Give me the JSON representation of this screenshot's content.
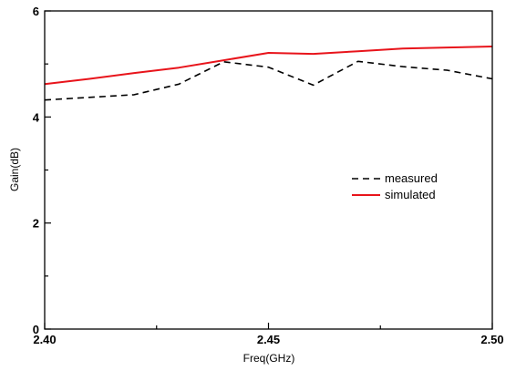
{
  "chart_data": {
    "type": "line",
    "xlabel": "Freq(GHz)",
    "ylabel": "Gain(dB)",
    "xlim": [
      2.4,
      2.5
    ],
    "ylim": [
      0,
      6
    ],
    "x_ticks": [
      "2.40",
      "2.45",
      "2.50"
    ],
    "y_ticks": [
      "0",
      "2",
      "4",
      "6"
    ],
    "legend_position": "right-middle",
    "grid": false,
    "series": [
      {
        "name": "measured",
        "color": "#000000",
        "style": "dashed",
        "x": [
          2.4,
          2.41,
          2.42,
          2.43,
          2.44,
          2.45,
          2.46,
          2.47,
          2.48,
          2.49,
          2.5
        ],
        "y": [
          4.32,
          4.37,
          4.42,
          4.62,
          5.04,
          4.94,
          4.6,
          5.05,
          4.95,
          4.88,
          4.72
        ]
      },
      {
        "name": "simulated",
        "color": "#e8141b",
        "style": "solid",
        "x": [
          2.4,
          2.41,
          2.42,
          2.43,
          2.44,
          2.45,
          2.46,
          2.47,
          2.48,
          2.49,
          2.5
        ],
        "y": [
          4.62,
          4.72,
          4.83,
          4.93,
          5.07,
          5.21,
          5.19,
          5.24,
          5.29,
          5.31,
          5.33
        ]
      }
    ]
  }
}
